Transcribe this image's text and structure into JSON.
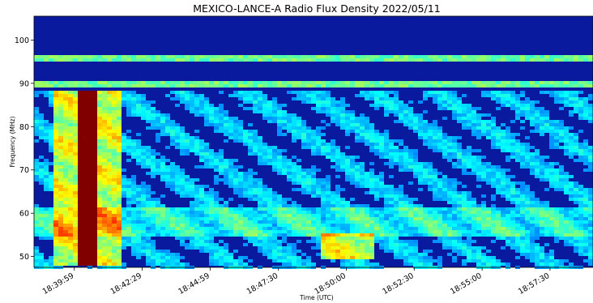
{
  "chart_data": {
    "type": "heatmap",
    "title": "MEXICO-LANCE-A Radio Flux Density 2022/05/11",
    "xlabel": "Time (UTC)",
    "ylabel": "Frequency (MHz)",
    "ylim": [
      47.5,
      105.5
    ],
    "yticks": [
      50,
      60,
      70,
      80,
      90,
      100
    ],
    "ytick_labels": [
      "50",
      "60",
      "70",
      "80",
      "90",
      "100"
    ],
    "xlim": [
      "18:38:30",
      "18:59:05"
    ],
    "xticks": [
      "18:39:59",
      "18:42:29",
      "18:44:59",
      "18:47:30",
      "18:50:00",
      "18:52:30",
      "18:55:00",
      "18:57:30"
    ],
    "colormap": "jet",
    "grid": false,
    "features": [
      {
        "desc": "intense burst (dark red)",
        "time_range": [
          "18:39:59",
          "18:40:40"
        ],
        "freq_range": [
          48,
          89
        ]
      },
      {
        "desc": "bright burst band",
        "time_range": [
          "18:39:10",
          "18:41:40"
        ],
        "freq_range": [
          48,
          89
        ]
      },
      {
        "desc": "emission patch",
        "time_range": [
          "18:49:00",
          "18:51:00"
        ],
        "freq_range": [
          50,
          56
        ]
      },
      {
        "desc": "narrowband interference line",
        "freq": 90
      },
      {
        "desc": "narrowband interference line",
        "freq": 96
      }
    ]
  }
}
